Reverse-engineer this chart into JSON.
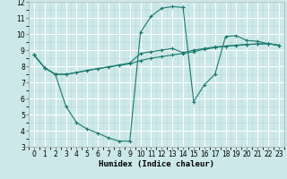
{
  "line1_x": [
    0,
    1,
    2,
    3,
    4,
    5,
    6,
    7,
    8,
    9,
    10,
    11,
    12,
    13,
    14,
    15,
    16,
    17,
    18,
    19,
    20,
    21,
    22,
    23
  ],
  "line1_y": [
    8.7,
    7.9,
    7.5,
    7.5,
    7.6,
    7.75,
    7.85,
    7.95,
    8.05,
    8.15,
    8.35,
    8.5,
    8.6,
    8.7,
    8.8,
    8.9,
    9.05,
    9.15,
    9.25,
    9.3,
    9.35,
    9.38,
    9.4,
    9.3
  ],
  "line2_x": [
    0,
    1,
    2,
    3,
    4,
    5,
    6,
    7,
    8,
    9,
    10,
    11,
    12,
    13,
    14,
    14,
    15,
    16,
    17,
    18,
    19,
    20,
    21,
    22,
    23
  ],
  "line2_y": [
    8.7,
    7.9,
    7.5,
    5.5,
    4.5,
    4.1,
    3.85,
    3.55,
    3.35,
    3.35,
    10.1,
    11.1,
    11.6,
    11.7,
    11.65,
    11.65,
    5.8,
    6.85,
    7.5,
    9.85,
    9.9,
    9.6,
    9.55,
    9.4,
    9.3
  ],
  "line3_x": [
    0,
    1,
    2,
    3,
    9,
    10,
    11,
    12,
    13,
    14,
    15,
    16,
    17,
    18,
    19,
    20,
    21,
    22,
    23
  ],
  "line3_y": [
    8.7,
    7.9,
    7.5,
    7.5,
    8.2,
    8.8,
    8.9,
    9.0,
    9.1,
    8.85,
    9.0,
    9.1,
    9.2,
    9.25,
    9.3,
    9.35,
    9.38,
    9.4,
    9.3
  ],
  "color": "#1a7a6e",
  "bg_color": "#cce8e8",
  "grid_major_color": "#ffffff",
  "grid_minor_color": "#b8d8d8",
  "xlim": [
    -0.5,
    23.5
  ],
  "ylim": [
    3,
    12
  ],
  "xlabel": "Humidex (Indice chaleur)",
  "xticks": [
    0,
    1,
    2,
    3,
    4,
    5,
    6,
    7,
    8,
    9,
    10,
    11,
    12,
    13,
    14,
    15,
    16,
    17,
    18,
    19,
    20,
    21,
    22,
    23
  ],
  "yticks": [
    3,
    4,
    5,
    6,
    7,
    8,
    9,
    10,
    11,
    12
  ],
  "xlabel_fontsize": 6.5,
  "tick_fontsize": 5.5
}
